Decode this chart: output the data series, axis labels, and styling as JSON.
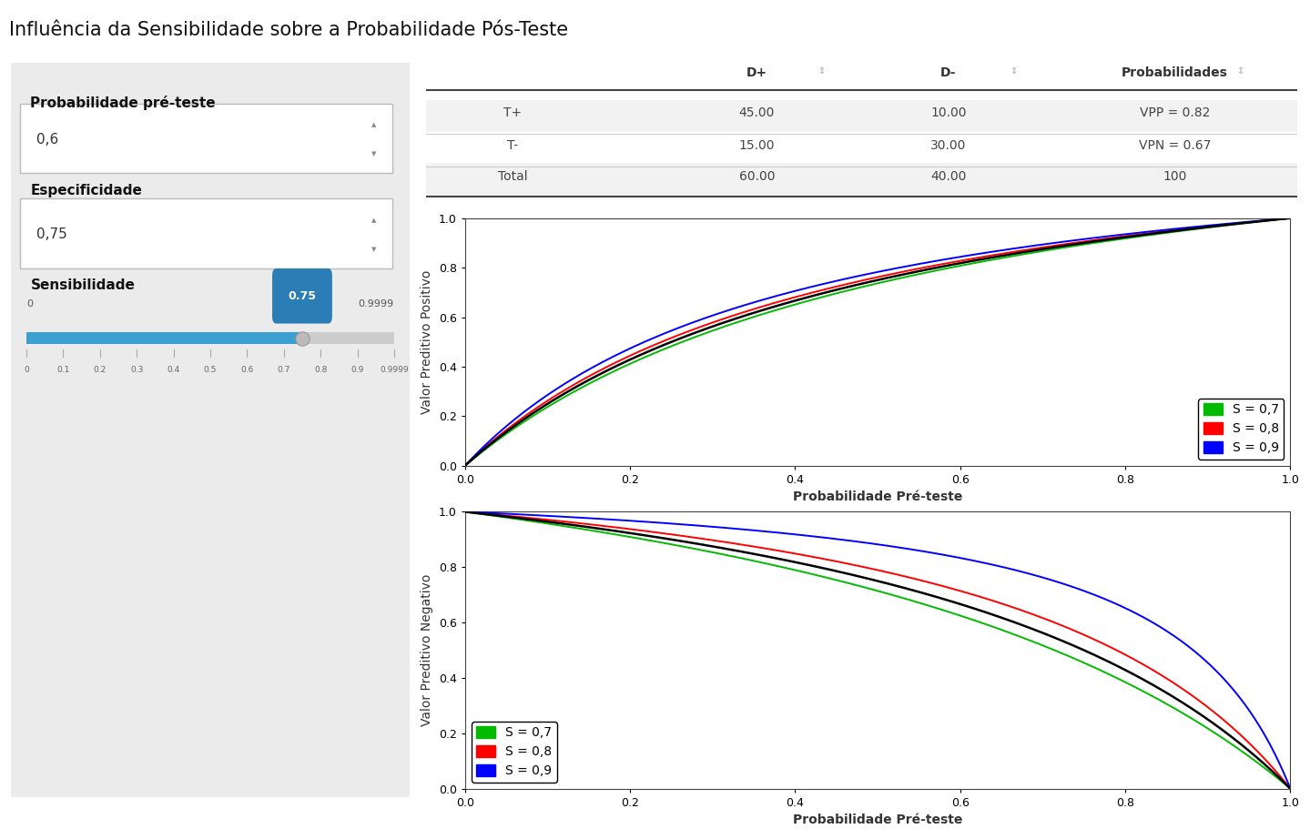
{
  "title": "Influência da Sensibilidade sobre a Probabilidade Pós-Teste",
  "pre_test_prob": "0,6",
  "especificidade": "0,75",
  "sensibilidade_value": 0.75,
  "slider_min": 0,
  "slider_max": 0.9999,
  "table_headers": [
    "",
    "D+",
    "D-",
    "Probabilidades"
  ],
  "table_rows": [
    [
      "T+",
      "45.00",
      "10.00",
      "VPP = 0.82"
    ],
    [
      "T-",
      "15.00",
      "30.00",
      "VPN = 0.67"
    ],
    [
      "Total",
      "60.00",
      "40.00",
      "100"
    ]
  ],
  "specificity": 0.75,
  "sensitivities": [
    0.7,
    0.8,
    0.9
  ],
  "sensitivity_current": 0.75,
  "line_colors": [
    "#00BB00",
    "#FF0000",
    "#0000FF"
  ],
  "line_current_color": "#000000",
  "legend_labels": [
    "S = 0,7",
    "S = 0,8",
    "S = 0,9"
  ],
  "vpp_ylabel": "Valor Preditivo Positivo",
  "vpn_ylabel": "Valor Preditivo Negativo",
  "xlabel": "Probabilidade Pré-teste",
  "panel_bg": "#EBEBEB",
  "plot_bg": "#FFFFFF",
  "fig_bg": "#FFFFFF",
  "title_fontsize": 15,
  "label_fontsize": 10,
  "tick_fontsize": 9,
  "legend_fontsize": 10,
  "slider_ticks": [
    0,
    0.1,
    0.2,
    0.3,
    0.4,
    0.5,
    0.6,
    0.7,
    0.8,
    0.9,
    0.9999
  ]
}
